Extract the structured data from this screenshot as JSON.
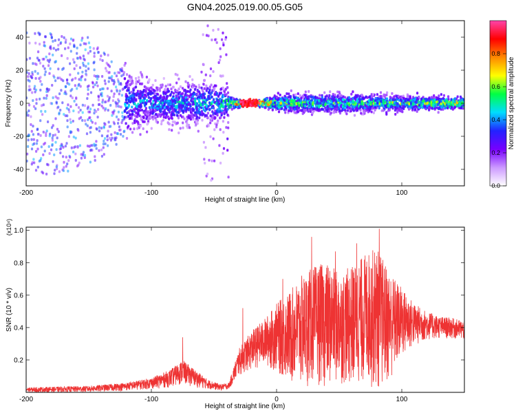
{
  "title": "GN04.2025.019.00.05.G05",
  "colors": {
    "snr_line": "#ee3333",
    "axis": "#000000",
    "background": "#ffffff"
  },
  "chart_data": [
    {
      "type": "heatmap",
      "xlabel": "Height of straight line (km)",
      "ylabel": "Frequency (Hz)",
      "xlim": [
        -200,
        150
      ],
      "ylim": [
        -50,
        50
      ],
      "xticks": [
        -200,
        -100,
        0,
        100
      ],
      "yticks": [
        -40,
        -20,
        0,
        20,
        40
      ],
      "colorbar": {
        "label": "Normalized spectral amplitude",
        "range": [
          0,
          1
        ],
        "ticks": [
          "0.0",
          "0.2",
          "0.4",
          "0.6",
          "0.8"
        ],
        "tick_values": [
          0,
          0.2,
          0.4,
          0.6,
          0.8
        ],
        "colormap": [
          "#ffffff",
          "#cc99ff",
          "#7700ff",
          "#2222ff",
          "#00ddff",
          "#00ff44",
          "#ffff00",
          "#ff8800",
          "#ff0000",
          "#ff44aa"
        ]
      },
      "profile": [
        {
          "height": -200,
          "spread": 45,
          "amp": 0.3
        },
        {
          "height": -150,
          "spread": 40,
          "amp": 0.35
        },
        {
          "height": -120,
          "spread": 18,
          "amp": 0.4
        },
        {
          "height": -100,
          "spread": 10,
          "amp": 0.45
        },
        {
          "height": -50,
          "spread": 12,
          "amp": 0.45
        },
        {
          "height": -35,
          "spread": 3,
          "amp": 0.7
        },
        {
          "height": -30,
          "spread": 1.5,
          "amp": 1.0
        },
        {
          "height": -15,
          "spread": 1.5,
          "amp": 1.0
        },
        {
          "height": 0,
          "spread": 4,
          "amp": 0.65
        },
        {
          "height": 50,
          "spread": 5,
          "amp": 0.55
        },
        {
          "height": 100,
          "spread": 4,
          "amp": 0.6
        },
        {
          "height": 150,
          "spread": 3,
          "amp": 0.7
        }
      ]
    },
    {
      "type": "line",
      "xlabel": "Height of straight line (km)",
      "ylabel": "SNR (10 * v/v)",
      "y_multiplier": "(x10⁴)",
      "xlim": [
        -200,
        150
      ],
      "ylim": [
        0,
        1.02
      ],
      "xticks": [
        -200,
        -100,
        0,
        100
      ],
      "yticks": [
        0.2,
        0.4,
        0.6,
        0.8,
        1.0
      ],
      "series": [
        {
          "envelope": {
            "x": [
              -200,
              -150,
              -120,
              -100,
              -85,
              -75,
              -65,
              -55,
              -45,
              -38,
              -30,
              -20,
              -10,
              0,
              10,
              20,
              30,
              40,
              50,
              60,
              70,
              80,
              90,
              100,
              110,
              120,
              130,
              140,
              150
            ],
            "upper": [
              0.03,
              0.04,
              0.06,
              0.09,
              0.14,
              0.2,
              0.14,
              0.08,
              0.05,
              0.06,
              0.27,
              0.38,
              0.45,
              0.55,
              0.62,
              0.72,
              0.78,
              0.8,
              0.74,
              0.78,
              0.85,
              0.9,
              0.75,
              0.65,
              0.55,
              0.5,
              0.47,
              0.46,
              0.44
            ],
            "lower": [
              0.0,
              0.0,
              0.01,
              0.02,
              0.03,
              0.05,
              0.03,
              0.02,
              0.01,
              0.02,
              0.1,
              0.14,
              0.16,
              0.12,
              0.05,
              0.02,
              0.05,
              0.02,
              0.05,
              0.03,
              0.05,
              0.0,
              0.05,
              0.2,
              0.28,
              0.32,
              0.33,
              0.33,
              0.32
            ]
          },
          "spikes": [
            {
              "x": -75,
              "y": 0.34
            },
            {
              "x": -27,
              "y": 0.52
            },
            {
              "x": 5,
              "y": 0.7
            },
            {
              "x": 28,
              "y": 0.96
            },
            {
              "x": 47,
              "y": 0.87
            },
            {
              "x": 64,
              "y": 0.92
            },
            {
              "x": 82,
              "y": 1.01
            }
          ]
        }
      ]
    }
  ]
}
